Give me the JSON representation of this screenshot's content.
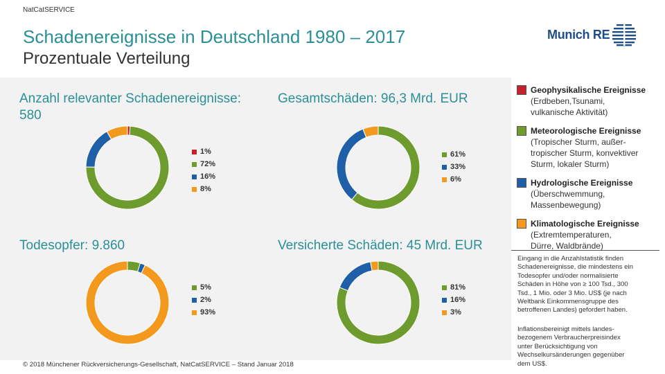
{
  "header": {
    "brand_label": "NatCatSERVICE",
    "title": "Schadenereignisse in Deutschland 1980 – 2017",
    "subtitle": "Prozentuale Verteilung",
    "logo_text": "Munich RE"
  },
  "colors": {
    "geo": "#c8202a",
    "met": "#6d9b2e",
    "hyd": "#1f5fa8",
    "kli": "#f39a1e",
    "accent": "#2a8f96",
    "band": "#f2f2f2"
  },
  "chart_data": [
    {
      "type": "pie",
      "title_line1": "Anzahl  relevanter Schadenereignisse:",
      "title_line2": "580",
      "labels": [
        "1%",
        "72%",
        "16%",
        "8%"
      ],
      "values": [
        1,
        72,
        16,
        8
      ],
      "colors": [
        "#c8202a",
        "#6d9b2e",
        "#1f5fa8",
        "#f39a1e"
      ]
    },
    {
      "type": "pie",
      "title_line1": "Gesamtschäden: 96,3 Mrd. EUR",
      "title_line2": "",
      "labels": [
        "61%",
        "33%",
        "6%"
      ],
      "values": [
        61,
        33,
        6
      ],
      "colors": [
        "#6d9b2e",
        "#1f5fa8",
        "#f39a1e"
      ]
    },
    {
      "type": "pie",
      "title_line1": "Todesopfer: 9.860",
      "title_line2": "",
      "labels": [
        "5%",
        "2%",
        "93%"
      ],
      "values": [
        5,
        2,
        93
      ],
      "colors": [
        "#6d9b2e",
        "#1f5fa8",
        "#f39a1e"
      ]
    },
    {
      "type": "pie",
      "title_line1": "Versicherte Schäden: 45 Mrd. EUR",
      "title_line2": "",
      "labels": [
        "81%",
        "16%",
        "3%"
      ],
      "values": [
        81,
        16,
        3
      ],
      "colors": [
        "#6d9b2e",
        "#1f5fa8",
        "#f39a1e"
      ]
    }
  ],
  "side_legend": [
    {
      "color": "#c8202a",
      "head": "Geophysikalische Ereignisse",
      "sub": [
        "(Erdbeben,Tsunami,",
        "vulkanische Aktivität)"
      ]
    },
    {
      "color": "#6d9b2e",
      "head": "Meteorologische Ereignisse",
      "sub": [
        "(Tropischer Sturm, außer-",
        "tropischer Sturm, konvektiver",
        "Sturm, lokaler Sturm)"
      ]
    },
    {
      "color": "#1f5fa8",
      "head": "Hydrologische Ereignisse",
      "sub": [
        "(Überschwemmung,",
        "Massenbewegung)"
      ]
    },
    {
      "color": "#f39a1e",
      "head": "Klimatologische Ereignisse",
      "sub": [
        "(Extremtemperaturen,",
        "Dürre,  Waldbrände)"
      ]
    }
  ],
  "notes": {
    "note1": [
      "Eingang  in die Anzahlstatistik finden",
      "Schadenereignisse, die mindestens ein",
      "Todesopfer und/oder normalisierte",
      "Schäden in Höhe von ≥ 100 Tsd., 300",
      "Tsd., 1 Mio.  oder 3 Mio.  US$ (je nach",
      "Weltbank Einkommensgruppe  des",
      "betroffenen Landes) gefordert haben."
    ],
    "note2": [
      "Inflationsbereinigt mittels landes-",
      "bezogenem Verbraucherpreisindex",
      "unter Berücksichtigung von",
      "Wechselkursänderungen gegenüber",
      "dem US$."
    ]
  },
  "footer": "© 2018 Münchener Rückversicherungs-Gesellschaft, NatCatSERVICE  – Stand Januar 2018"
}
